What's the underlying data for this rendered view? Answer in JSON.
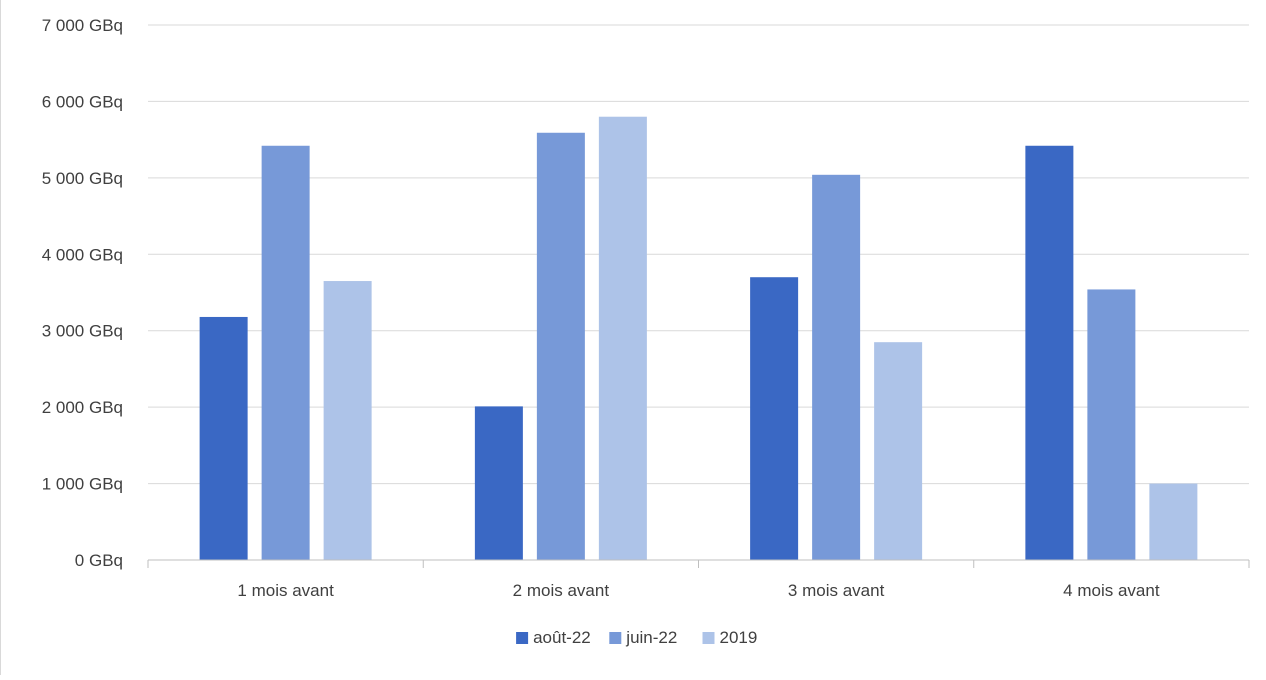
{
  "chart_data": {
    "type": "bar",
    "title": "",
    "xlabel": "",
    "ylabel": "",
    "categories": [
      "1 mois avant",
      "2 mois avant",
      "3 mois avant",
      "4 mois avant"
    ],
    "series": [
      {
        "name": "août-22",
        "color": "#3a68c4",
        "values": [
          3180,
          2010,
          3700,
          5420
        ]
      },
      {
        "name": "juin-22",
        "color": "#7799d8",
        "values": [
          5420,
          5590,
          5040,
          3540
        ]
      },
      {
        "name": "2019",
        "color": "#adc3e8",
        "values": [
          3650,
          5800,
          2850,
          1000
        ]
      }
    ],
    "ylim": [
      0,
      7000
    ],
    "y_ticks": [
      0,
      1000,
      2000,
      3000,
      4000,
      5000,
      6000,
      7000
    ],
    "y_tick_labels": [
      "0 GBq",
      "1 000 GBq",
      "2 000 GBq",
      "3 000 GBq",
      "4 000 GBq",
      "5 000 GBq",
      "6 000 GBq",
      "7 000 GBq"
    ],
    "grid": true,
    "legend_position": "bottom"
  }
}
